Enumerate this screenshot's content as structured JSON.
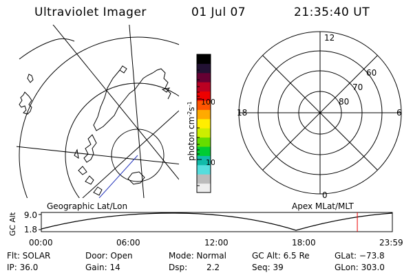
{
  "header": {
    "title": "Ultraviolet Imager",
    "date": "01 Jul 07",
    "time": "21:35:40 UT"
  },
  "colorbar": {
    "label": "photon cm",
    "label_exp1": "-2",
    "label_mid": "s",
    "label_exp2": "-1",
    "ticks": [
      {
        "label": "100",
        "value": 100
      },
      {
        "label": "10",
        "value": 10
      }
    ],
    "colors": [
      "#eeeeee",
      "#bbbbbb",
      "#55dddd",
      "#11bbaa",
      "#00cc33",
      "#66dd00",
      "#ccee00",
      "#ffee00",
      "#ffaa00",
      "#ff5500",
      "#ee0000",
      "#bb0022",
      "#660033",
      "#221133",
      "#000000"
    ]
  },
  "polar_plot": {
    "mlt_labels": {
      "top": "12",
      "left": "18",
      "right": "6",
      "bottom": "0"
    },
    "lat_labels": [
      "60",
      "70",
      "80"
    ]
  },
  "panels": {
    "left_label": "Geographic Lat/Lon",
    "right_label": "Apex MLat/MLT"
  },
  "timeline": {
    "ylabel": "GC Alt",
    "ymax_label": "9.0",
    "ymin_label": "1.8",
    "ticks": [
      "00:00",
      "06:00",
      "12:00",
      "18:00",
      "23:59"
    ],
    "current_time_hours": 21.59,
    "marker_color": "#ee0000"
  },
  "info": {
    "flt": "Flt: SOLAR",
    "ip": "IP: 36.0",
    "door": "Door: Open",
    "gain": "Gain: 14",
    "mode": "Mode: Normal",
    "dsp_label": "Dsp:",
    "dsp_value": "2.2",
    "gc_alt": "GC Alt: 6.5 Re",
    "seq": "Seq: 39",
    "glat": "GLat: −73.8",
    "glon": "GLon: 303.0"
  }
}
